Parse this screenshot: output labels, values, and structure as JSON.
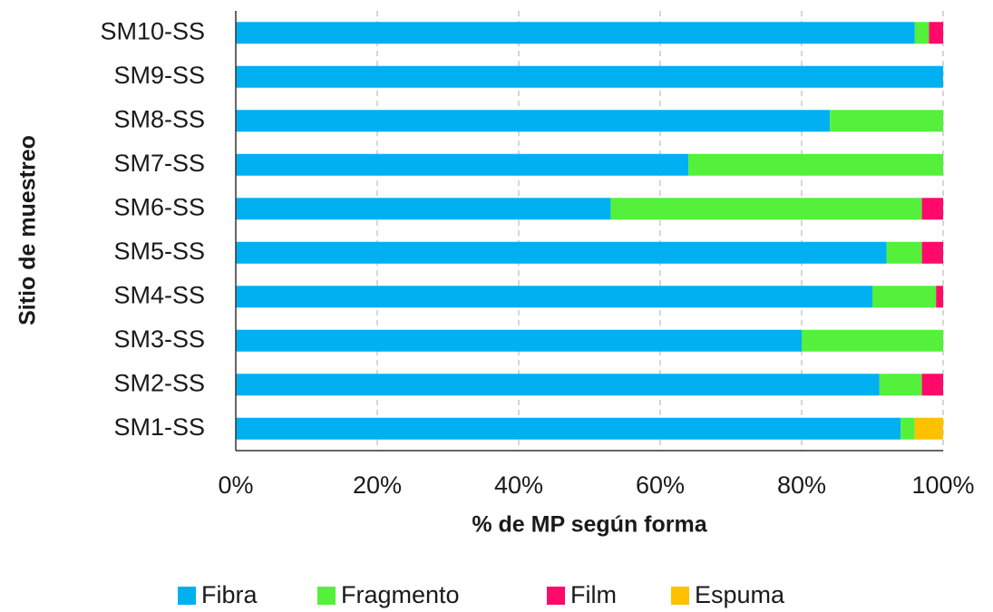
{
  "chart_data": {
    "type": "stacked_barh",
    "xlabel": "% de MP según forma",
    "ylabel": "Sitio de muestreo",
    "categories": [
      "SM10-SS",
      "SM9-SS",
      "SM8-SS",
      "SM7-SS",
      "SM6-SS",
      "SM5-SS",
      "SM4-SS",
      "SM3-SS",
      "SM2-SS",
      "SM1-SS"
    ],
    "series": [
      {
        "name": "Fibra",
        "color": "#00b0f0",
        "values": [
          96,
          100,
          84,
          64,
          53,
          92,
          90,
          80,
          91,
          94
        ]
      },
      {
        "name": "Fragmento",
        "color": "#55f03c",
        "values": [
          2,
          0,
          16,
          36,
          44,
          5,
          9,
          20,
          6,
          2
        ]
      },
      {
        "name": "Film",
        "color": "#ff0a6a",
        "values": [
          2,
          0,
          0,
          0,
          3,
          3,
          1,
          0,
          3,
          0
        ]
      },
      {
        "name": "Espuma",
        "color": "#ffc000",
        "values": [
          0,
          0,
          0,
          0,
          0,
          0,
          0,
          0,
          0,
          4
        ]
      }
    ],
    "xlim": [
      0,
      100
    ],
    "xticks": [
      {
        "value": 0,
        "label": "0%"
      },
      {
        "value": 20,
        "label": "20%"
      },
      {
        "value": 40,
        "label": "40%"
      },
      {
        "value": 60,
        "label": "60%"
      },
      {
        "value": 80,
        "label": "80%"
      },
      {
        "value": 100,
        "label": "100%"
      }
    ],
    "grid": true,
    "legend": "bottom"
  }
}
